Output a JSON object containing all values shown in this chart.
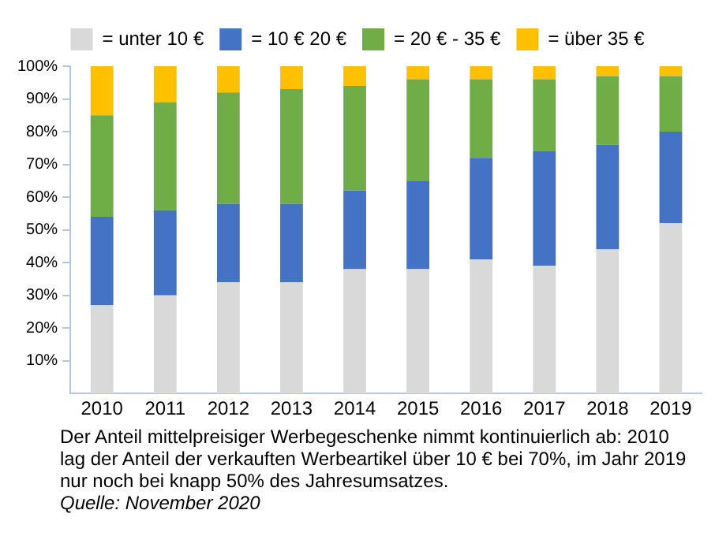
{
  "chart_data": {
    "type": "bar",
    "stacked": true,
    "categories": [
      "2010",
      "2011",
      "2012",
      "2013",
      "2014",
      "2015",
      "2016",
      "2017",
      "2018",
      "2019"
    ],
    "series": [
      {
        "name": "= unter 10 €",
        "color": "#d9d9d9",
        "values": [
          27,
          30,
          34,
          34,
          38,
          38,
          41,
          39,
          44,
          52
        ]
      },
      {
        "name": "= 10 € 20 €",
        "color": "#4472c4",
        "values": [
          27,
          26,
          24,
          24,
          24,
          27,
          31,
          35,
          32,
          28
        ]
      },
      {
        "name": "= 20 € - 35 €",
        "color": "#70ad47",
        "values": [
          31,
          33,
          34,
          35,
          32,
          31,
          24,
          22,
          21,
          17
        ]
      },
      {
        "name": "= über 35 €",
        "color": "#ffc000",
        "values": [
          15,
          11,
          8,
          7,
          6,
          4,
          4,
          4,
          3,
          3
        ]
      }
    ],
    "ylim": [
      0,
      100
    ],
    "yticks": [
      {
        "value": 10,
        "label": "10%"
      },
      {
        "value": 20,
        "label": "20%"
      },
      {
        "value": 30,
        "label": "30%"
      },
      {
        "value": 40,
        "label": "40%"
      },
      {
        "value": 50,
        "label": "50%"
      },
      {
        "value": 60,
        "label": "60%"
      },
      {
        "value": 70,
        "label": "70%"
      },
      {
        "value": 80,
        "label": "80%"
      },
      {
        "value": 90,
        "label": "90%"
      },
      {
        "value": 100,
        "label": "100%"
      }
    ],
    "grid": false,
    "legend": "top",
    "annotations": [
      "Der Anteil mittelpreisiger Werbegeschenke nimmt kontinuierlich ab: 2010 lag der Anteil der verkauften Werbeartikel über 10 € bei 70%, im Jahr 2019 nur noch bei knapp  50% des Jahresumsatzes.",
      "Quelle: November 2020"
    ]
  }
}
